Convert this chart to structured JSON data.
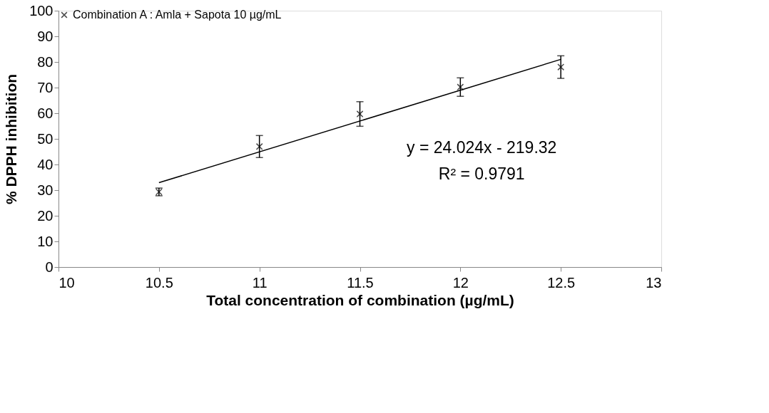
{
  "chart_data": {
    "type": "scatter",
    "xlabel": "Total concentration of combination (µg/mL)",
    "ylabel": "% DPPH inhibition",
    "x": [
      10.5,
      11,
      11.5,
      12,
      12.5
    ],
    "series": [
      {
        "name": "Combination A : Amla +  Sapota 10 µg/mL",
        "color": "#000000",
        "marker": "cross",
        "values": [
          29.3,
          47,
          59.7,
          70.2,
          78
        ],
        "errors": [
          1.5,
          4.3,
          4.8,
          3.6,
          4.4
        ]
      },
      {
        "type": "line",
        "color": "#000000",
        "x": [
          10.5,
          12.5
        ],
        "values": [
          32.9,
          81.0
        ]
      }
    ],
    "annotations": [
      "y = 24.024x - 219.32",
      "R² = 0.9791"
    ],
    "xlim": [
      10,
      13
    ],
    "xticks": [
      10,
      10.5,
      11,
      11.5,
      12,
      12.5,
      13
    ],
    "ylim": [
      0,
      100
    ],
    "yticks": [
      0,
      10,
      20,
      30,
      40,
      50,
      60,
      70,
      80,
      90,
      100
    ],
    "grid": false,
    "legend": "top"
  }
}
